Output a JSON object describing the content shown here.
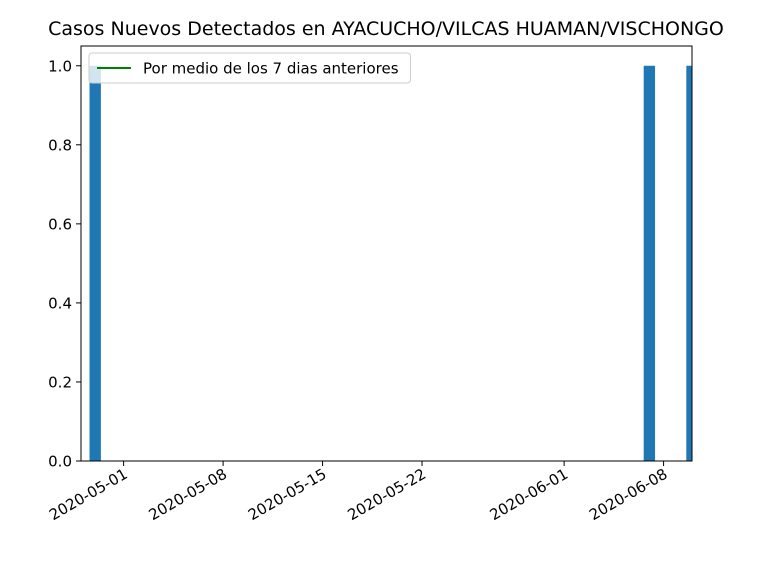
{
  "chart_data": {
    "type": "bar",
    "title": "Casos Nuevos Detectados en AYACUCHO/VILCAS HUAMAN/VISCHONGO",
    "xlabel": "",
    "ylabel": "",
    "x_axis_kind": "date",
    "xlim": [
      "2020-04-28",
      "2020-06-10"
    ],
    "ylim": [
      0,
      1.05
    ],
    "yticks": [
      0.0,
      0.2,
      0.4,
      0.6,
      0.8,
      1.0
    ],
    "ytick_labels": [
      "0.0",
      "0.2",
      "0.4",
      "0.6",
      "0.8",
      "1.0"
    ],
    "xticks": [
      "2020-05-01",
      "2020-05-08",
      "2020-05-15",
      "2020-05-22",
      "2020-06-01",
      "2020-06-08"
    ],
    "grid": false,
    "legend": {
      "placement": "top-left",
      "entries": [
        {
          "label": "Por medio de los 7 dias anteriores",
          "color": "#008000",
          "marker": "line"
        }
      ]
    },
    "series": [
      {
        "type": "bar",
        "color": "#1f77b4",
        "points": [
          {
            "x": "2020-04-29",
            "y": 1
          },
          {
            "x": "2020-06-07",
            "y": 1
          },
          {
            "x": "2020-06-10",
            "y": 1
          }
        ]
      }
    ]
  }
}
